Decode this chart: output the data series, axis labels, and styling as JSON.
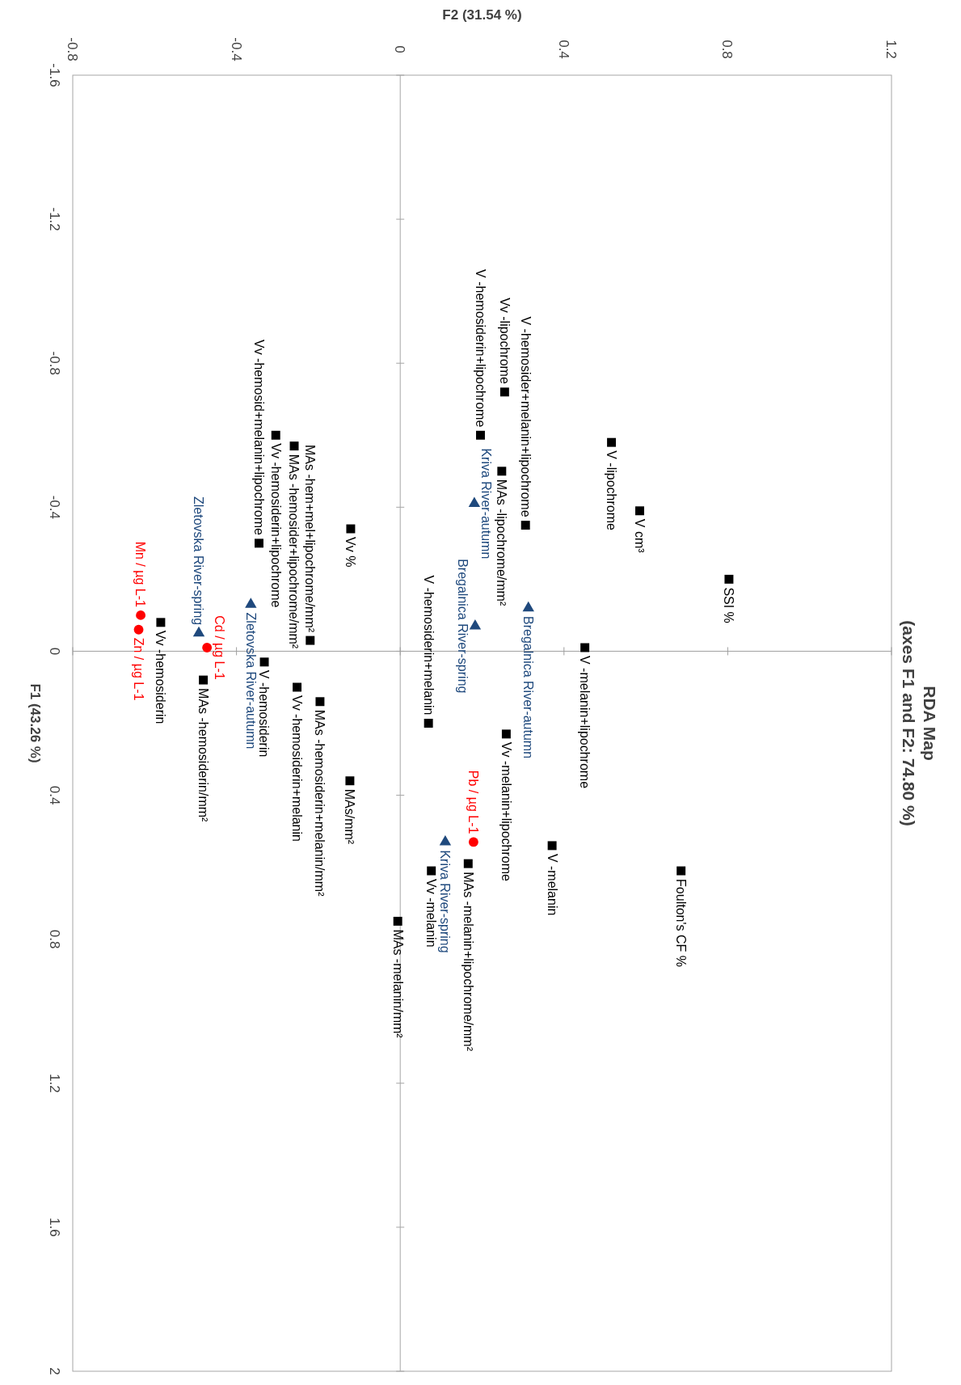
{
  "chart_data": {
    "type": "scatter",
    "title": "RDA Map",
    "subtitle": "(axes F1 and F2: 74.80 %)",
    "xlabel": "F2 (31.54 %)",
    "ylabel": "F1 (43.26 %)",
    "xlim": [
      -0.8,
      1.2
    ],
    "xticks": [
      -0.8,
      -0.4,
      0,
      0.4,
      0.8,
      1.2
    ],
    "ylim": [
      2,
      -1.6
    ],
    "yticks": [
      -1.6,
      -1.2,
      -0.8,
      -0.4,
      0,
      0.4,
      0.8,
      1.2,
      1.6,
      2
    ],
    "grid": false,
    "ref_lines": [
      {
        "axis": "x",
        "value": 0,
        "color": "#a6a6a6"
      },
      {
        "axis": "y",
        "value": 0,
        "color": "#9f9f9f"
      }
    ],
    "series": [
      {
        "color": "#000000",
        "marker": "square",
        "x": [
          0.516,
          0.255,
          0.196,
          0.248,
          0.306,
          0.585,
          0.803,
          0.451,
          -0.121,
          -0.345,
          -0.304,
          -0.259,
          -0.22,
          -0.585,
          -0.332,
          -0.481,
          -0.252,
          -0.196,
          0.069,
          0.259,
          -0.123,
          0.371,
          0.686,
          0.166,
          0.076,
          -0.006
        ],
        "values": [
          -0.58,
          -0.72,
          -0.6,
          -0.5,
          -0.35,
          -0.39,
          -0.2,
          -0.01,
          -0.34,
          -0.3,
          -0.6,
          -0.57,
          -0.03,
          -0.08,
          0.03,
          0.08,
          0.1,
          0.14,
          0.2,
          0.23,
          0.36,
          0.54,
          0.61,
          0.59,
          0.61,
          0.75
        ]
      },
      {
        "color": "#ff0000",
        "marker": "circle",
        "x": [
          -0.634,
          -0.639,
          -0.472,
          0.179
        ],
        "values": [
          -0.1,
          -0.06,
          -0.01,
          0.53
        ]
      },
      {
        "color": "#1f497d",
        "marker": "triangle",
        "x": [
          0.181,
          0.313,
          0.183,
          -0.365,
          -0.492,
          0.11
        ],
        "values": [
          -0.41,
          -0.12,
          -0.07,
          -0.13,
          -0.05,
          0.53
        ]
      }
    ],
    "annotations": [
      {
        "text": "V -lipochrome",
        "x": 0.516,
        "y": -0.58
      },
      {
        "text": "Vv -lipochrome",
        "x": 0.255,
        "y": -0.72
      },
      {
        "text": "V -hemosiderin+lipochrome",
        "x": 0.196,
        "y": -0.6
      },
      {
        "text": "MAs -lipochrome/mm²",
        "x": 0.248,
        "y": -0.5
      },
      {
        "text": "V -hemosider+melanin+lipochrome",
        "x": 0.306,
        "y": -0.35
      },
      {
        "text": "V cm³",
        "x": 0.585,
        "y": -0.39
      },
      {
        "text": "SSI %",
        "x": 0.803,
        "y": -0.2
      },
      {
        "text": "V -melanin+lipochrome",
        "x": 0.451,
        "y": -0.01
      },
      {
        "text": "Vv %",
        "x": -0.121,
        "y": -0.34
      },
      {
        "text": "Vv -hemosid+melanin+lipochrome",
        "x": -0.345,
        "y": -0.3
      },
      {
        "text": "Vv -hemosiderin+lipochrome",
        "x": -0.304,
        "y": -0.6
      },
      {
        "text": "MAs -hemosider+lipochrome/mm²",
        "x": -0.259,
        "y": -0.57
      },
      {
        "text": "MAs -hem+mel+lipochrome/mm²",
        "x": -0.22,
        "y": -0.03
      },
      {
        "text": "Vv -hemosiderin",
        "x": -0.585,
        "y": -0.08
      },
      {
        "text": "V -hemosiderin",
        "x": -0.332,
        "y": 0.03
      },
      {
        "text": "MAs -hemosiderin/mm²",
        "x": -0.481,
        "y": 0.08
      },
      {
        "text": "Vv -hemosiderin+melanin",
        "x": -0.252,
        "y": 0.1
      },
      {
        "text": "MAs -hemosiderin+melanin/mm²",
        "x": -0.196,
        "y": 0.14
      },
      {
        "text": "V -hemosiderin+melanin",
        "x": 0.069,
        "y": 0.2
      },
      {
        "text": "Vv -melanin+lipochrome",
        "x": 0.259,
        "y": 0.23
      },
      {
        "text": "MAs/mm²",
        "x": -0.123,
        "y": 0.36
      },
      {
        "text": "V -melanin",
        "x": 0.371,
        "y": 0.54
      },
      {
        "text": "Foulton's CF %",
        "x": 0.686,
        "y": 0.61
      },
      {
        "text": "MAs -melanin+lipochrome/mm²",
        "x": 0.166,
        "y": 0.59
      },
      {
        "text": "Vv -melanin",
        "x": 0.076,
        "y": 0.61
      },
      {
        "text": "MAs -melanin/mm²",
        "x": -0.006,
        "y": 0.75
      },
      {
        "text": "Mn / µg L-1",
        "x": -0.634,
        "y": -0.1
      },
      {
        "text": "Zn / µg L-1",
        "x": -0.639,
        "y": -0.06
      },
      {
        "text": "Cd / µg L-1",
        "x": -0.472,
        "y": -0.01
      },
      {
        "text": "Pb / µg L-1",
        "x": 0.179,
        "y": 0.53
      },
      {
        "text": "Kriva River-autumn",
        "x": 0.181,
        "y": -0.41
      },
      {
        "text": "Bregalnica River-autumn",
        "x": 0.313,
        "y": -0.12
      },
      {
        "text": "Bregalnica River-spring",
        "x": 0.183,
        "y": -0.07
      },
      {
        "text": "Zletovska River-autumn",
        "x": -0.365,
        "y": -0.13
      },
      {
        "text": "Zletovska River-spring",
        "x": -0.492,
        "y": -0.05
      },
      {
        "text": "Kriva River-spring",
        "x": 0.11,
        "y": 0.53
      }
    ]
  }
}
